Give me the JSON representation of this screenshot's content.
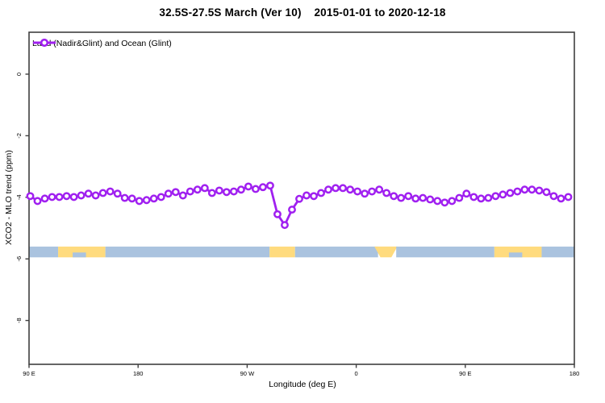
{
  "title": "32.5S-27.5S March (Ver 10)    2015-01-01 to 2020-12-18",
  "legend": {
    "label": "Land (Nadir&Glint) and Ocean (Glint)",
    "symbol": "purple-line-open-circle"
  },
  "axes": {
    "x": {
      "label": "Longitude (deg E)",
      "tick_labels": [
        "90 E",
        "180",
        "90 W",
        "0",
        "90 E",
        "180"
      ],
      "tick_positions_deg_axis": [
        90,
        180,
        270,
        360,
        450,
        540
      ],
      "range_deg_axis": [
        90,
        540
      ]
    },
    "y": {
      "label": "XCO2 - MLO trend (ppm)",
      "tick_labels": [
        "0",
        "-2",
        "-4",
        "-6",
        "-8"
      ],
      "tick_values": [
        0,
        -2,
        -4,
        -6,
        -8
      ],
      "ylim": [
        -9.4,
        1.4
      ]
    }
  },
  "colors": {
    "line": "#a020f0",
    "marker_fill": "#ffffff",
    "ocean": "#aac3df",
    "land": "#ffdb7e",
    "axis": "#3f3f3f",
    "text": "#000000"
  },
  "chart_data": {
    "type": "line",
    "title": "32.5S-27.5S March (Ver 10)    2015-01-01 to 2020-12-18",
    "xlabel": "Longitude (deg E)",
    "ylabel": "XCO2 - MLO trend (ppm)",
    "x_axis_note": "longitude axis wraps eastward: 90E -> 180 -> 90W -> 0 -> 90E -> 180 (values >360 are deg-360 East)",
    "legend_position": "top-left",
    "grid": false,
    "series": [
      {
        "name": "Land (Nadir&Glint) and Ocean (Glint)",
        "color": "#a020f0",
        "marker": "open-circle",
        "x_deg_axis": [
          91,
          97,
          103,
          109,
          115,
          121,
          127,
          133,
          139,
          145,
          151,
          157,
          163,
          169,
          175,
          181,
          187,
          193,
          199,
          205,
          211,
          217,
          223,
          229,
          235,
          241,
          247,
          253,
          259,
          265,
          271,
          277,
          283,
          289,
          295,
          301,
          307,
          313,
          319,
          325,
          331,
          337,
          343,
          349,
          355,
          361,
          367,
          373,
          379,
          385,
          391,
          397,
          403,
          409,
          415,
          421,
          427,
          433,
          439,
          445,
          451,
          457,
          463,
          469,
          475,
          481,
          487,
          493,
          499,
          505,
          511,
          517,
          523,
          529,
          535
        ],
        "values_ppm": [
          -3.96,
          -4.12,
          -4.04,
          -3.99,
          -3.99,
          -3.96,
          -3.99,
          -3.94,
          -3.88,
          -3.94,
          -3.86,
          -3.81,
          -3.88,
          -4.02,
          -4.04,
          -4.12,
          -4.09,
          -4.04,
          -3.99,
          -3.88,
          -3.83,
          -3.94,
          -3.81,
          -3.75,
          -3.7,
          -3.86,
          -3.78,
          -3.83,
          -3.81,
          -3.75,
          -3.65,
          -3.73,
          -3.67,
          -3.62,
          -4.55,
          -4.9,
          -4.4,
          -4.05,
          -3.94,
          -3.96,
          -3.86,
          -3.75,
          -3.7,
          -3.7,
          -3.75,
          -3.81,
          -3.88,
          -3.81,
          -3.75,
          -3.86,
          -3.96,
          -4.02,
          -3.96,
          -4.04,
          -4.02,
          -4.07,
          -4.12,
          -4.17,
          -4.12,
          -4.02,
          -3.88,
          -3.99,
          -4.04,
          -4.02,
          -3.96,
          -3.91,
          -3.86,
          -3.81,
          -3.75,
          -3.75,
          -3.78,
          -3.83,
          -3.96,
          -4.04,
          -3.99
        ]
      }
    ],
    "land_ocean_strip": {
      "description": "land/ocean map strip for latitude band 32.5S-27.5S",
      "ppm_top": -5.6,
      "ppm_bottom": -5.95,
      "segments": [
        {
          "surface": "ocean",
          "from": 90,
          "to": 114
        },
        {
          "surface": "land",
          "from": 114,
          "to": 153
        },
        {
          "surface": "ocean",
          "from": 153,
          "to": 288.5
        },
        {
          "surface": "land",
          "from": 288.5,
          "to": 309.5
        },
        {
          "surface": "ocean",
          "from": 309.5,
          "to": 378
        },
        {
          "surface": "land",
          "from": 378,
          "to": 393,
          "shape": "trapezoid",
          "top_from": 375,
          "top_to": 394,
          "bottom_from": 380,
          "bottom_to": 389
        },
        {
          "surface": "ocean",
          "from": 393,
          "to": 474
        },
        {
          "surface": "land",
          "from": 474,
          "to": 513
        },
        {
          "surface": "ocean",
          "from": 513,
          "to": 540
        }
      ],
      "ocean_notches_bottom": [
        {
          "from": 126,
          "to": 137
        },
        {
          "from": 486,
          "to": 497
        }
      ]
    }
  }
}
